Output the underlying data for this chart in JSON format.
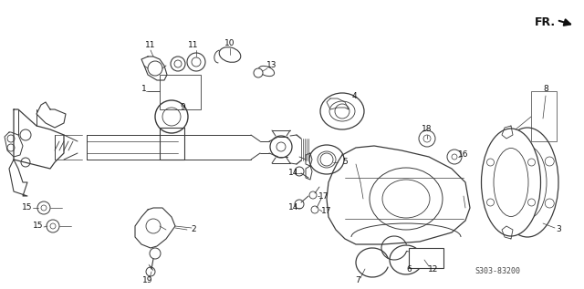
{
  "background_color": "#ffffff",
  "fig_width": 6.4,
  "fig_height": 3.17,
  "dpi": 100,
  "part_number": "S303-83200",
  "direction_label": "FR.",
  "line_color": "#3a3a3a",
  "label_fontsize": 6.5,
  "part_number_fontsize": 6,
  "direction_fontsize": 9
}
